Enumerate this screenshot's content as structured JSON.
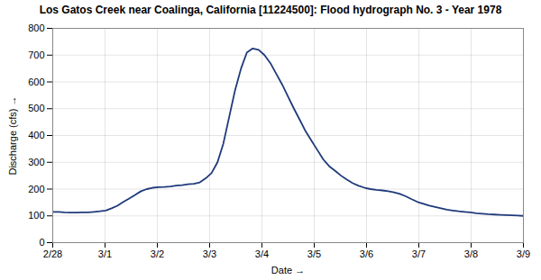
{
  "chart_data": {
    "type": "line",
    "title": "Los Gatos Creek near Coalinga, California [11224500]:  Flood hydrograph No. 3 - Year 1978",
    "xlabel": "Date",
    "ylabel": "Discharge (cfs)",
    "x": [
      0,
      1,
      2,
      3,
      4,
      5,
      6,
      7,
      8,
      9,
      10,
      11,
      12,
      13,
      14,
      15,
      16,
      17,
      18,
      19,
      20,
      21,
      22,
      23,
      24,
      25,
      26,
      27,
      28,
      29,
      30,
      31,
      32,
      33,
      34,
      35,
      36,
      37,
      38,
      39,
      40,
      41,
      42,
      43,
      44,
      45,
      46,
      47,
      48,
      49,
      50,
      51,
      52,
      53,
      54,
      55,
      56,
      57,
      58,
      59,
      60,
      61,
      62,
      63,
      64,
      65,
      66,
      67,
      68,
      69,
      70,
      71,
      72,
      73,
      74,
      75,
      76,
      77,
      78,
      79,
      80
    ],
    "values": [
      115,
      115,
      113,
      112,
      112,
      113,
      113,
      115,
      117,
      120,
      128,
      138,
      152,
      165,
      178,
      192,
      200,
      205,
      207,
      208,
      210,
      213,
      215,
      218,
      220,
      225,
      240,
      260,
      300,
      370,
      470,
      570,
      650,
      710,
      725,
      720,
      700,
      670,
      630,
      590,
      545,
      500,
      458,
      415,
      380,
      345,
      310,
      285,
      268,
      250,
      235,
      222,
      212,
      205,
      200,
      197,
      195,
      192,
      188,
      182,
      173,
      162,
      152,
      145,
      138,
      133,
      128,
      123,
      120,
      117,
      115,
      113,
      110,
      108,
      106,
      105,
      104,
      103,
      102,
      101,
      100
    ],
    "color": "#1F3A7A",
    "xlim": [
      0,
      80
    ],
    "xticks": [
      {
        "value": 0,
        "label": "2/28"
      },
      {
        "value": 8.88888888888889,
        "label": "3/1"
      },
      {
        "value": 17.77777777777778,
        "label": "3/2"
      },
      {
        "value": 26.666666666666668,
        "label": "3/3"
      },
      {
        "value": 35.55555555555556,
        "label": "3/4"
      },
      {
        "value": 44.44444444444444,
        "label": "3/5"
      },
      {
        "value": 53.333333333333336,
        "label": "3/6"
      },
      {
        "value": 62.22222222222222,
        "label": "3/7"
      },
      {
        "value": 71.11111111111111,
        "label": "3/8"
      },
      {
        "value": 80,
        "label": "3/9"
      }
    ],
    "ylim": [
      0,
      800
    ],
    "yticks": [
      0,
      100,
      200,
      300,
      400,
      500,
      600,
      700,
      800
    ],
    "grid": true
  }
}
